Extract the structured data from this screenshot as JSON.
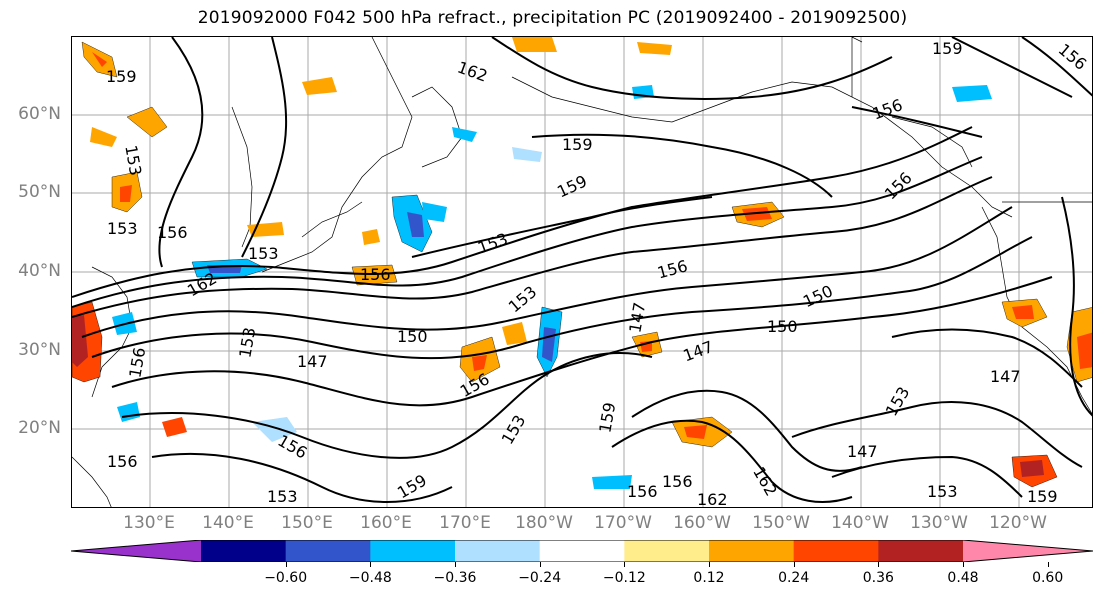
{
  "title": "2019092000 F042 500 hPa refract., precipitation PC (2019092400 - 2019092500)",
  "latitude_labels": [
    "60°N",
    "50°N",
    "40°N",
    "30°N",
    "20°N"
  ],
  "longitude_labels": [
    "130°E",
    "140°E",
    "150°E",
    "160°E",
    "170°E",
    "180°W",
    "170°W",
    "160°W",
    "150°W",
    "140°W",
    "130°W",
    "120°W"
  ],
  "contour_labels": [
    "159",
    "162",
    "159",
    "156",
    "156",
    "153",
    "153",
    "156",
    "153",
    "156",
    "162",
    "159",
    "153",
    "159",
    "156",
    "153",
    "156",
    "153",
    "150",
    "156",
    "147",
    "150",
    "150",
    "147",
    "147",
    "153",
    "147",
    "159",
    "156",
    "153",
    "147",
    "156",
    "156",
    "162",
    "162",
    "156",
    "159",
    "153",
    "156",
    "153",
    "159"
  ],
  "colorbar": {
    "tick_labels": [
      "−0.60",
      "−0.48",
      "−0.36",
      "−0.24",
      "−0.12",
      "0.12",
      "0.24",
      "0.36",
      "0.48",
      "0.60"
    ],
    "colors": [
      "#9932cc",
      "#00008b",
      "#3355cc",
      "#00bfff",
      "#b0e0ff",
      "#ffffff",
      "#ffec8b",
      "#ffa500",
      "#ff4500",
      "#b22222",
      "#ff88aa"
    ]
  }
}
